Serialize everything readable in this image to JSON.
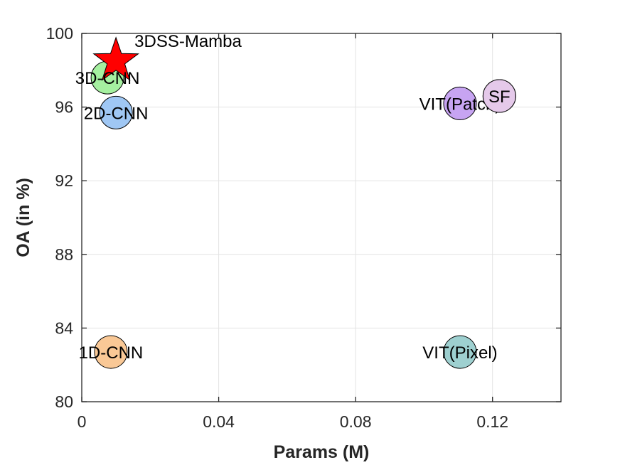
{
  "chart_data": {
    "type": "scatter",
    "title": "",
    "xlabel": "Params (M)",
    "ylabel": "OA (in %)",
    "xlim": [
      0,
      0.14
    ],
    "ylim": [
      80,
      100
    ],
    "xticks": [
      0,
      0.04,
      0.08,
      0.12
    ],
    "xtick_labels": [
      "0",
      "0.04",
      "0.08",
      "0.12"
    ],
    "yticks": [
      80,
      84,
      88,
      92,
      96,
      100
    ],
    "ytick_labels": [
      "80",
      "84",
      "88",
      "92",
      "96",
      "100"
    ],
    "grid": true,
    "points": [
      {
        "name": "1D-CNN",
        "label": "1D-CNN",
        "x": 0.0085,
        "y": 82.7,
        "color": "#F9C896",
        "marker": "circle"
      },
      {
        "name": "2D-CNN",
        "label": "2D-CNN",
        "x": 0.01,
        "y": 95.7,
        "color": "#9FC7F4",
        "marker": "circle"
      },
      {
        "name": "3D-CNN",
        "label": "3D-CNN",
        "x": 0.0075,
        "y": 97.6,
        "color": "#A5F0A0",
        "marker": "circle"
      },
      {
        "name": "VIT(Patch)",
        "label": "VIT(Patch)",
        "x": 0.1105,
        "y": 96.2,
        "color": "#C7A4F2",
        "marker": "circle"
      },
      {
        "name": "SF",
        "label": "SF",
        "x": 0.122,
        "y": 96.6,
        "color": "#E5C9EA",
        "marker": "circle"
      },
      {
        "name": "VIT(Pixel)",
        "label": "VIT(Pixel)",
        "x": 0.1105,
        "y": 82.7,
        "color": "#9ED0D0",
        "marker": "circle"
      },
      {
        "name": "3DSS-Mamba",
        "label": "3DSS-Mamba",
        "x": 0.01,
        "y": 98.5,
        "color": "#FF0000",
        "marker": "star"
      }
    ]
  }
}
